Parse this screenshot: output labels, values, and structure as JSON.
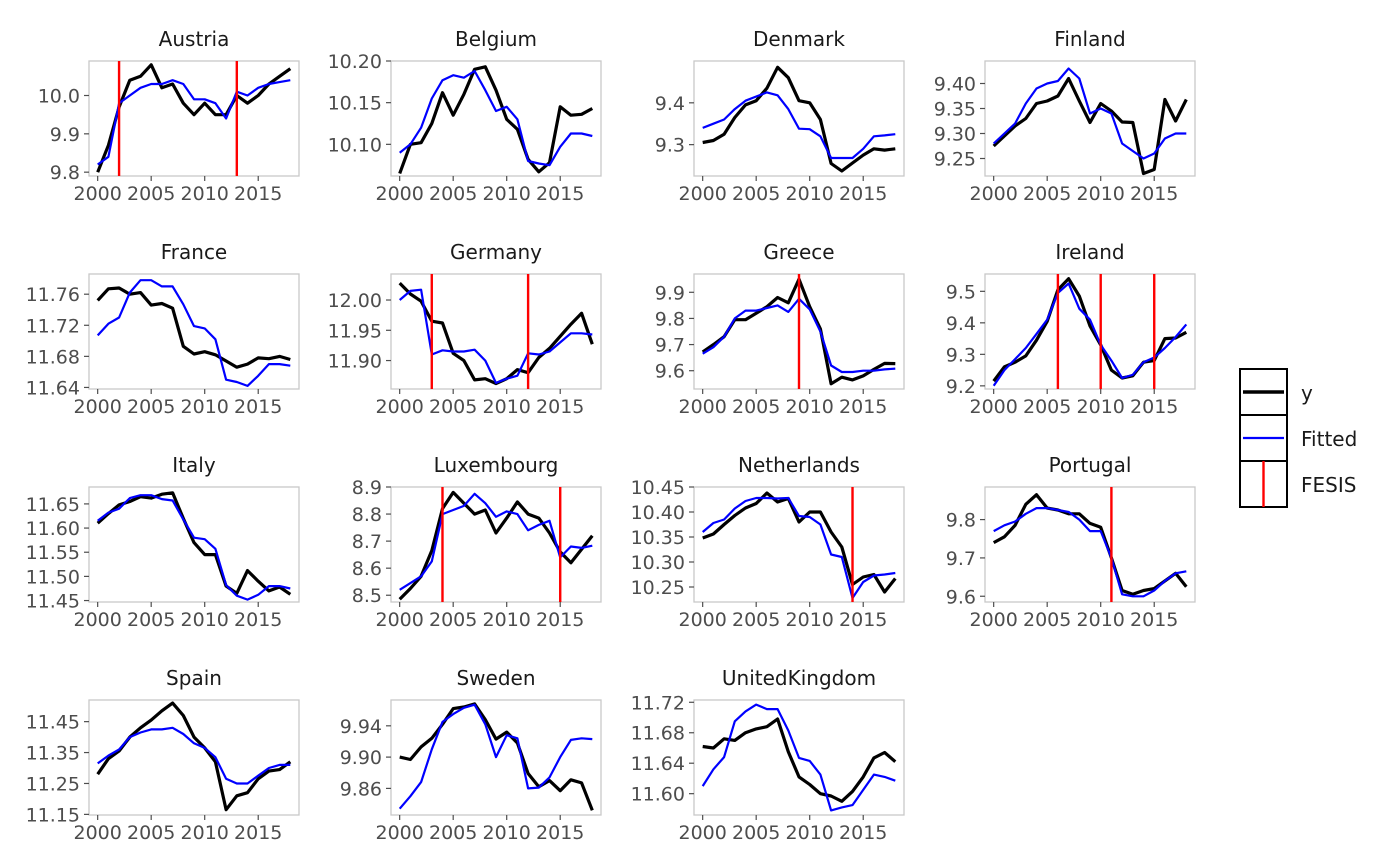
{
  "chart_data": {
    "type": "line",
    "layout": "facet-grid",
    "legend": {
      "position": "right",
      "items": [
        {
          "label": "y",
          "color": "#000000",
          "style": "thick-line"
        },
        {
          "label": "Fitted",
          "color": "#0000ff",
          "style": "thin-line"
        },
        {
          "label": "FESIS",
          "color": "#ff0000",
          "style": "vertical-line"
        }
      ]
    },
    "x": [
      2000,
      2001,
      2002,
      2003,
      2004,
      2005,
      2006,
      2007,
      2008,
      2009,
      2010,
      2011,
      2012,
      2013,
      2014,
      2015,
      2016,
      2017,
      2018
    ],
    "xlim": [
      2000,
      2018
    ],
    "xticks": [
      2000,
      2005,
      2010,
      2015
    ],
    "panels": [
      {
        "title": "Austria",
        "ylim": [
          9.79,
          10.09
        ],
        "yticks": [
          9.8,
          9.9,
          10.0
        ],
        "ytick_labels": [
          "9.8",
          "9.9",
          "10.0"
        ],
        "y": [
          9.8,
          9.87,
          9.97,
          10.04,
          10.05,
          10.08,
          10.02,
          10.03,
          9.98,
          9.95,
          9.98,
          9.95,
          9.95,
          10.0,
          9.98,
          10.0,
          10.03,
          10.05,
          10.07
        ],
        "fitted": [
          9.82,
          9.84,
          9.98,
          10.0,
          10.02,
          10.03,
          10.03,
          10.04,
          10.03,
          9.99,
          9.99,
          9.98,
          9.94,
          10.01,
          10.0,
          10.02,
          10.03,
          10.035,
          10.04
        ],
        "fesis": [
          2002,
          2013
        ]
      },
      {
        "title": "Belgium",
        "ylim": [
          10.062,
          10.2
        ],
        "yticks": [
          10.1,
          10.15,
          10.2
        ],
        "ytick_labels": [
          "10.10",
          "10.15",
          "10.20"
        ],
        "y": [
          10.065,
          10.1,
          10.102,
          10.125,
          10.162,
          10.135,
          10.16,
          10.19,
          10.193,
          10.165,
          10.13,
          10.118,
          10.082,
          10.067,
          10.078,
          10.145,
          10.135,
          10.136,
          10.143
        ],
        "fitted": [
          10.09,
          10.1,
          10.12,
          10.155,
          10.177,
          10.183,
          10.18,
          10.188,
          10.165,
          10.14,
          10.145,
          10.13,
          10.08,
          10.077,
          10.075,
          10.097,
          10.113,
          10.113,
          10.11
        ],
        "fesis": []
      },
      {
        "title": "Denmark",
        "ylim": [
          9.225,
          9.5
        ],
        "yticks": [
          9.3,
          9.4
        ],
        "ytick_labels": [
          "9.3",
          "9.4"
        ],
        "y": [
          9.305,
          9.31,
          9.325,
          9.365,
          9.395,
          9.405,
          9.435,
          9.485,
          9.46,
          9.405,
          9.4,
          9.36,
          9.255,
          9.237,
          9.256,
          9.275,
          9.29,
          9.287,
          9.29
        ],
        "fitted": [
          9.34,
          9.35,
          9.36,
          9.385,
          9.405,
          9.415,
          9.425,
          9.418,
          9.385,
          9.338,
          9.337,
          9.32,
          9.268,
          9.268,
          9.268,
          9.29,
          9.32,
          9.322,
          9.325
        ],
        "fesis": []
      },
      {
        "title": "Finland",
        "ylim": [
          9.215,
          9.445
        ],
        "yticks": [
          9.25,
          9.3,
          9.35,
          9.4
        ],
        "ytick_labels": [
          "9.25",
          "9.30",
          "9.35",
          "9.40"
        ],
        "y": [
          9.275,
          9.295,
          9.315,
          9.33,
          9.36,
          9.365,
          9.375,
          9.41,
          9.365,
          9.322,
          9.36,
          9.345,
          9.323,
          9.322,
          9.22,
          9.228,
          9.368,
          9.325,
          9.368
        ],
        "fitted": [
          9.28,
          9.3,
          9.32,
          9.36,
          9.39,
          9.4,
          9.405,
          9.43,
          9.41,
          9.34,
          9.35,
          9.34,
          9.28,
          9.265,
          9.25,
          9.26,
          9.29,
          9.3,
          9.3
        ],
        "fesis": []
      },
      {
        "title": "France",
        "ylim": [
          11.638,
          11.786
        ],
        "yticks": [
          11.64,
          11.68,
          11.72,
          11.76
        ],
        "ytick_labels": [
          "11.64",
          "11.68",
          "11.72",
          "11.76"
        ],
        "y": [
          11.752,
          11.767,
          11.768,
          11.76,
          11.762,
          11.746,
          11.748,
          11.742,
          11.693,
          11.683,
          11.686,
          11.682,
          11.674,
          11.666,
          11.67,
          11.678,
          11.677,
          11.68,
          11.676
        ],
        "fitted": [
          11.707,
          11.722,
          11.73,
          11.762,
          11.778,
          11.778,
          11.77,
          11.77,
          11.747,
          11.719,
          11.716,
          11.702,
          11.65,
          11.647,
          11.642,
          11.655,
          11.67,
          11.67,
          11.668
        ],
        "fesis": []
      },
      {
        "title": "Germany",
        "ylim": [
          11.853,
          12.043
        ],
        "yticks": [
          11.9,
          11.95,
          12.0
        ],
        "ytick_labels": [
          "11.90",
          "11.95",
          "12.00"
        ],
        "y": [
          12.028,
          12.01,
          11.998,
          11.965,
          11.962,
          11.912,
          11.9,
          11.868,
          11.87,
          11.862,
          11.87,
          11.885,
          11.88,
          11.905,
          11.92,
          11.94,
          11.96,
          11.978,
          11.927
        ],
        "fitted": [
          12.0,
          12.015,
          12.017,
          11.91,
          11.917,
          11.915,
          11.915,
          11.918,
          11.9,
          11.863,
          11.87,
          11.875,
          11.912,
          11.91,
          11.915,
          11.93,
          11.945,
          11.945,
          11.943
        ],
        "fesis": [
          2003,
          2012
        ]
      },
      {
        "title": "Greece",
        "ylim": [
          9.53,
          9.97
        ],
        "yticks": [
          9.6,
          9.7,
          9.8,
          9.9
        ],
        "ytick_labels": [
          "9.6",
          "9.7",
          "9.8",
          "9.9"
        ],
        "y": [
          9.672,
          9.7,
          9.73,
          9.795,
          9.795,
          9.82,
          9.845,
          9.88,
          9.86,
          9.95,
          9.845,
          9.76,
          9.55,
          9.575,
          9.565,
          9.58,
          9.605,
          9.628,
          9.627
        ],
        "fitted": [
          9.665,
          9.69,
          9.73,
          9.8,
          9.83,
          9.83,
          9.84,
          9.85,
          9.825,
          9.875,
          9.835,
          9.75,
          9.62,
          9.595,
          9.595,
          9.6,
          9.6,
          9.605,
          9.608
        ],
        "fesis": [
          2009
        ]
      },
      {
        "title": "Ireland",
        "ylim": [
          9.19,
          9.555
        ],
        "yticks": [
          9.2,
          9.3,
          9.4,
          9.5
        ],
        "ytick_labels": [
          "9.2",
          "9.3",
          "9.4",
          "9.5"
        ],
        "y": [
          9.215,
          9.26,
          9.275,
          9.295,
          9.345,
          9.405,
          9.505,
          9.54,
          9.485,
          9.39,
          9.33,
          9.25,
          9.225,
          9.232,
          9.275,
          9.28,
          9.35,
          9.352,
          9.37
        ],
        "fitted": [
          9.2,
          9.25,
          9.285,
          9.32,
          9.365,
          9.41,
          9.495,
          9.525,
          9.445,
          9.41,
          9.33,
          9.28,
          9.225,
          9.235,
          9.275,
          9.29,
          9.32,
          9.355,
          9.395
        ],
        "fesis": [
          2006,
          2010,
          2015
        ]
      },
      {
        "title": "Italy",
        "ylim": [
          11.447,
          11.685
        ],
        "yticks": [
          11.45,
          11.5,
          11.55,
          11.6,
          11.65
        ],
        "ytick_labels": [
          "11.45",
          "11.50",
          "11.55",
          "11.60",
          "11.65"
        ],
        "y": [
          11.61,
          11.63,
          11.648,
          11.655,
          11.665,
          11.662,
          11.67,
          11.673,
          11.62,
          11.57,
          11.545,
          11.545,
          11.48,
          11.465,
          11.512,
          11.49,
          11.47,
          11.478,
          11.463
        ],
        "fitted": [
          11.615,
          11.632,
          11.64,
          11.662,
          11.668,
          11.668,
          11.66,
          11.657,
          11.618,
          11.58,
          11.577,
          11.557,
          11.482,
          11.46,
          11.452,
          11.462,
          11.48,
          11.48,
          11.475
        ],
        "fesis": []
      },
      {
        "title": "Luxembourg",
        "ylim": [
          8.475,
          8.9
        ],
        "yticks": [
          8.5,
          8.6,
          8.7,
          8.8,
          8.9
        ],
        "ytick_labels": [
          "8.5",
          "8.6",
          "8.7",
          "8.8",
          "8.9"
        ],
        "y": [
          8.485,
          8.525,
          8.57,
          8.665,
          8.82,
          8.88,
          8.84,
          8.8,
          8.815,
          8.73,
          8.785,
          8.845,
          8.8,
          8.785,
          8.73,
          8.66,
          8.62,
          8.67,
          8.72
        ],
        "fitted": [
          8.52,
          8.545,
          8.57,
          8.625,
          8.8,
          8.815,
          8.83,
          8.875,
          8.84,
          8.79,
          8.81,
          8.8,
          8.74,
          8.76,
          8.775,
          8.64,
          8.68,
          8.675,
          8.683
        ],
        "fesis": [
          2004,
          2015
        ]
      },
      {
        "title": "Netherlands",
        "ylim": [
          10.22,
          10.45
        ],
        "yticks": [
          10.25,
          10.3,
          10.35,
          10.4,
          10.45
        ],
        "ytick_labels": [
          "10.25",
          "10.30",
          "10.35",
          "10.40",
          "10.45"
        ],
        "y": [
          10.348,
          10.356,
          10.375,
          10.393,
          10.408,
          10.417,
          10.438,
          10.42,
          10.427,
          10.38,
          10.4,
          10.4,
          10.36,
          10.33,
          10.255,
          10.27,
          10.275,
          10.24,
          10.267
        ],
        "fitted": [
          10.36,
          10.378,
          10.385,
          10.407,
          10.422,
          10.428,
          10.428,
          10.427,
          10.428,
          10.392,
          10.39,
          10.375,
          10.315,
          10.31,
          10.228,
          10.26,
          10.273,
          10.275,
          10.278
        ],
        "fesis": [
          2014
        ]
      },
      {
        "title": "Portugal",
        "ylim": [
          9.585,
          9.885
        ],
        "yticks": [
          9.6,
          9.7,
          9.8
        ],
        "ytick_labels": [
          "9.6",
          "9.7",
          "9.8"
        ],
        "y": [
          9.74,
          9.755,
          9.785,
          9.84,
          9.865,
          9.83,
          9.825,
          9.815,
          9.815,
          9.79,
          9.78,
          9.7,
          9.615,
          9.605,
          9.615,
          9.62,
          9.64,
          9.66,
          9.625
        ],
        "fitted": [
          9.77,
          9.785,
          9.795,
          9.815,
          9.83,
          9.83,
          9.825,
          9.82,
          9.8,
          9.77,
          9.77,
          9.7,
          9.605,
          9.6,
          9.6,
          9.615,
          9.64,
          9.66,
          9.665
        ],
        "fesis": [
          2011
        ]
      },
      {
        "title": "Spain",
        "ylim": [
          11.148,
          11.52
        ],
        "yticks": [
          11.15,
          11.25,
          11.35,
          11.45
        ],
        "ytick_labels": [
          "11.15",
          "11.25",
          "11.35",
          "11.45"
        ],
        "y": [
          11.28,
          11.33,
          11.355,
          11.4,
          11.43,
          11.455,
          11.485,
          11.51,
          11.47,
          11.4,
          11.365,
          11.32,
          11.165,
          11.21,
          11.22,
          11.265,
          11.29,
          11.295,
          11.32
        ],
        "fitted": [
          11.315,
          11.34,
          11.36,
          11.4,
          11.415,
          11.425,
          11.425,
          11.43,
          11.41,
          11.38,
          11.365,
          11.335,
          11.265,
          11.25,
          11.25,
          11.275,
          11.3,
          11.31,
          11.31
        ],
        "fesis": []
      },
      {
        "title": "Sweden",
        "ylim": [
          9.826,
          9.973
        ],
        "yticks": [
          9.86,
          9.9,
          9.94
        ],
        "ytick_labels": [
          "9.86",
          "9.90",
          "9.94"
        ],
        "y": [
          9.9,
          9.897,
          9.913,
          9.924,
          9.942,
          9.962,
          9.964,
          9.968,
          9.948,
          9.923,
          9.932,
          9.918,
          9.879,
          9.862,
          9.87,
          9.857,
          9.871,
          9.867,
          9.832
        ],
        "fitted": [
          9.834,
          9.85,
          9.868,
          9.91,
          9.945,
          9.955,
          9.963,
          9.967,
          9.942,
          9.9,
          9.928,
          9.924,
          9.86,
          9.861,
          9.874,
          9.9,
          9.922,
          9.924,
          9.923
        ],
        "fesis": []
      },
      {
        "title": "UnitedKingdom",
        "ylim": [
          11.572,
          11.723
        ],
        "yticks": [
          11.6,
          11.64,
          11.68,
          11.72
        ],
        "ytick_labels": [
          "11.60",
          "11.64",
          "11.68",
          "11.72"
        ],
        "y": [
          11.662,
          11.66,
          11.672,
          11.67,
          11.68,
          11.685,
          11.688,
          11.698,
          11.655,
          11.622,
          11.612,
          11.6,
          11.597,
          11.59,
          11.603,
          11.622,
          11.647,
          11.654,
          11.642
        ],
        "fitted": [
          11.61,
          11.632,
          11.648,
          11.695,
          11.708,
          11.717,
          11.711,
          11.711,
          11.683,
          11.647,
          11.643,
          11.625,
          11.578,
          11.582,
          11.585,
          11.605,
          11.625,
          11.622,
          11.617
        ],
        "fesis": []
      }
    ]
  }
}
